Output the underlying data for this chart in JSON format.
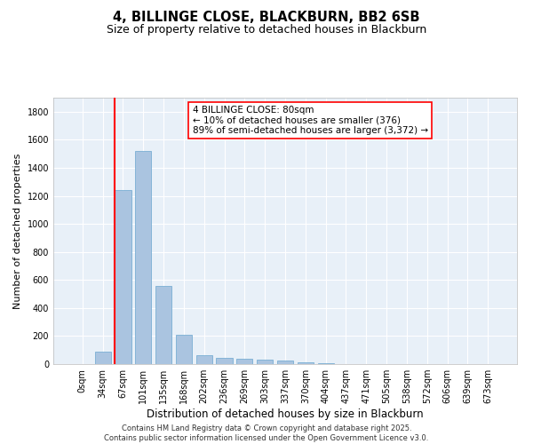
{
  "title": "4, BILLINGE CLOSE, BLACKBURN, BB2 6SB",
  "subtitle": "Size of property relative to detached houses in Blackburn",
  "xlabel": "Distribution of detached houses by size in Blackburn",
  "ylabel": "Number of detached properties",
  "categories": [
    "0sqm",
    "34sqm",
    "67sqm",
    "101sqm",
    "135sqm",
    "168sqm",
    "202sqm",
    "236sqm",
    "269sqm",
    "303sqm",
    "337sqm",
    "370sqm",
    "404sqm",
    "437sqm",
    "471sqm",
    "505sqm",
    "538sqm",
    "572sqm",
    "606sqm",
    "639sqm",
    "673sqm"
  ],
  "values": [
    0,
    90,
    1240,
    1520,
    560,
    210,
    65,
    45,
    35,
    30,
    28,
    10,
    4,
    2,
    1,
    0,
    0,
    0,
    0,
    0,
    0
  ],
  "bar_color": "#aac4e0",
  "bar_edge_color": "#7aafd4",
  "vline_color": "red",
  "vline_x_index": 2,
  "ylim": [
    0,
    1900
  ],
  "yticks": [
    0,
    200,
    400,
    600,
    800,
    1000,
    1200,
    1400,
    1600,
    1800
  ],
  "annotation_text": "4 BILLINGE CLOSE: 80sqm\n← 10% of detached houses are smaller (376)\n89% of semi-detached houses are larger (3,372) →",
  "annotation_box_color": "white",
  "annotation_box_edge": "red",
  "bg_color": "#e8f0f8",
  "footer_line1": "Contains HM Land Registry data © Crown copyright and database right 2025.",
  "footer_line2": "Contains public sector information licensed under the Open Government Licence v3.0.",
  "title_fontsize": 10.5,
  "subtitle_fontsize": 9,
  "tick_fontsize": 7,
  "ylabel_fontsize": 8,
  "xlabel_fontsize": 8.5,
  "footer_fontsize": 6,
  "annotation_fontsize": 7.5
}
